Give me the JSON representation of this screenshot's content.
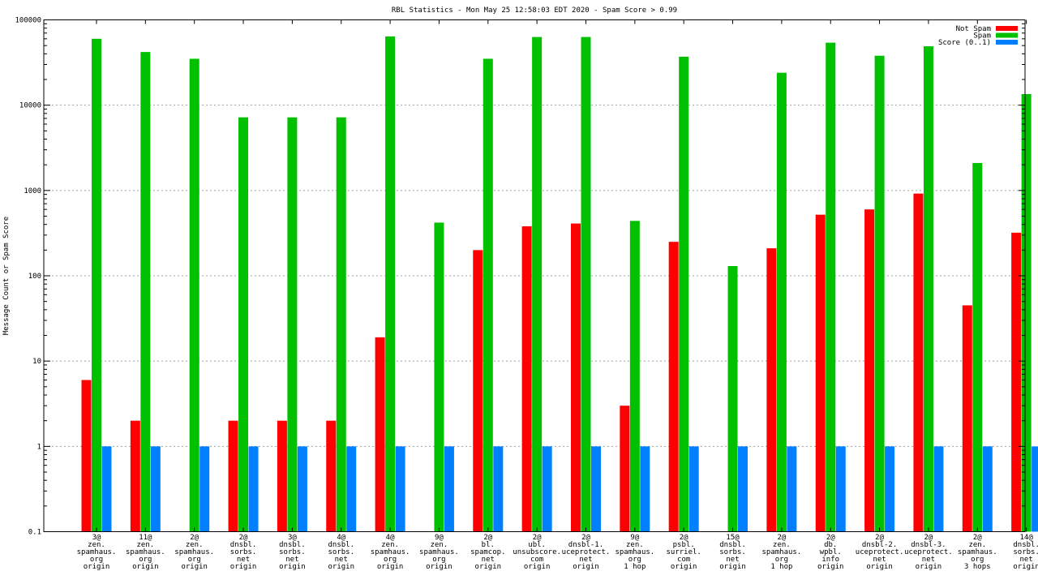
{
  "chart_data": {
    "type": "bar",
    "title": "RBL Statistics - Mon May 25 12:58:03 EDT 2020 - Spam Score > 0.99",
    "ylabel": "Message Count or Spam Score",
    "xlabel": "",
    "yscale": "log",
    "ylim": [
      0.1,
      100000
    ],
    "grid": true,
    "legend_position": "top-right",
    "yticks": [
      "0.1",
      "1",
      "10",
      "100",
      "1000",
      "10000",
      "100000"
    ],
    "categories": [
      [
        "3@",
        "zen.",
        "spamhaus.",
        "org",
        "origin"
      ],
      [
        "11@",
        "zen.",
        "spamhaus.",
        "org",
        "origin"
      ],
      [
        "2@",
        "zen.",
        "spamhaus.",
        "org",
        "origin"
      ],
      [
        "2@",
        "dnsbl.",
        "sorbs.",
        "net",
        "origin"
      ],
      [
        "3@",
        "dnsbl.",
        "sorbs.",
        "net",
        "origin"
      ],
      [
        "4@",
        "dnsbl.",
        "sorbs.",
        "net",
        "origin"
      ],
      [
        "4@",
        "zen.",
        "spamhaus.",
        "org",
        "origin"
      ],
      [
        "9@",
        "zen.",
        "spamhaus.",
        "org",
        "origin"
      ],
      [
        "2@",
        "bl.",
        "spamcop.",
        "net",
        "origin"
      ],
      [
        "2@",
        "ubl.",
        "unsubscore.",
        "com",
        "origin"
      ],
      [
        "2@",
        "dnsbl-1.",
        "uceprotect.",
        "net",
        "origin"
      ],
      [
        "9@",
        "zen.",
        "spamhaus.",
        "org",
        "1 hop"
      ],
      [
        "2@",
        "psbl.",
        "surriel.",
        "com",
        "origin"
      ],
      [
        "15@",
        "dnsbl.",
        "sorbs.",
        "net",
        "origin"
      ],
      [
        "2@",
        "zen.",
        "spamhaus.",
        "org",
        "1 hop"
      ],
      [
        "2@",
        "db.",
        "wpbl.",
        "info",
        "origin"
      ],
      [
        "2@",
        "dnsbl-2.",
        "uceprotect.",
        "net",
        "origin"
      ],
      [
        "2@",
        "dnsbl-3.",
        "uceprotect.",
        "net",
        "origin"
      ],
      [
        "2@",
        "zen.",
        "spamhaus.",
        "org",
        "3 hops"
      ],
      [
        "14@",
        "dnsbl.",
        "sorbs.",
        "net",
        "origin"
      ]
    ],
    "series": [
      {
        "name": "Not Spam",
        "color": "#ff0000",
        "values": [
          6,
          2,
          null,
          2,
          2,
          2,
          19,
          null,
          200,
          380,
          410,
          3,
          250,
          null,
          210,
          520,
          600,
          920,
          45,
          320
        ]
      },
      {
        "name": "Spam",
        "color": "#00c000",
        "values": [
          60000,
          42000,
          35000,
          7200,
          7200,
          7200,
          64000,
          420,
          35000,
          63000,
          63000,
          440,
          37000,
          130,
          24000,
          54000,
          38000,
          49000,
          2100,
          13500
        ]
      },
      {
        "name": "Score (0..1)",
        "color": "#0080ff",
        "values": [
          1,
          1,
          1,
          1,
          1,
          1,
          1,
          1,
          1,
          1,
          1,
          1,
          1,
          1,
          1,
          1,
          1,
          1,
          1,
          1
        ]
      }
    ]
  }
}
